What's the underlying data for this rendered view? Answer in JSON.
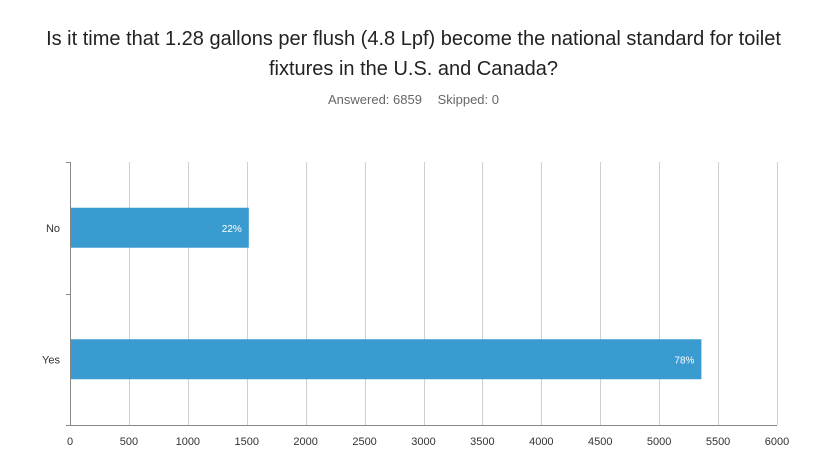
{
  "question": {
    "title_lines": [
      "Is it time that 1.28 gallons per flush (4.8 Lpf) become the national standard for toilet",
      "fixtures in the U.S. and Canada?"
    ],
    "answered": "Answered: 6859",
    "skipped": "Skipped: 0"
  },
  "chart_data": {
    "type": "bar",
    "orientation": "horizontal",
    "title": "Is it time that 1.28 gallons per flush (4.8 Lpf) become the national standard for toilet fixtures in the U.S. and Canada?",
    "categories": [
      "No",
      "Yes"
    ],
    "values": [
      1509,
      5350
    ],
    "data_labels": [
      "22%",
      "78%"
    ],
    "xlim": [
      0,
      6000
    ],
    "xticks": [
      0,
      500,
      1000,
      1500,
      2000,
      2500,
      3000,
      3500,
      4000,
      4500,
      5000,
      5500,
      6000
    ],
    "grid": true,
    "bar_color": "#3a9bd0",
    "grid_color": "#cfcfcf"
  }
}
